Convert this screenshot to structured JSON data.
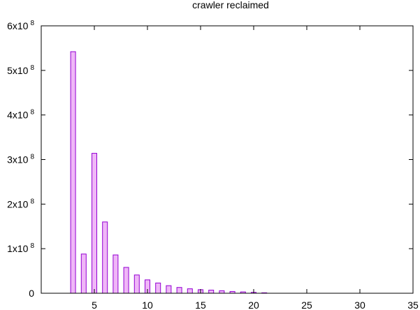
{
  "chart_data": {
    "type": "bar",
    "title": "crawler reclaimed",
    "xlabel": "",
    "ylabel": "",
    "xlim": [
      0,
      35
    ],
    "ylim": [
      0,
      600000000
    ],
    "x_ticks": [
      5,
      10,
      15,
      20,
      25,
      30,
      35
    ],
    "y_ticks": [
      {
        "value": 0,
        "mantissa": "0",
        "exp": ""
      },
      {
        "value": 100000000,
        "mantissa": "1x10",
        "exp": "8"
      },
      {
        "value": 200000000,
        "mantissa": "2x10",
        "exp": "8"
      },
      {
        "value": 300000000,
        "mantissa": "3x10",
        "exp": "8"
      },
      {
        "value": 400000000,
        "mantissa": "4x10",
        "exp": "8"
      },
      {
        "value": 500000000,
        "mantissa": "5x10",
        "exp": "8"
      },
      {
        "value": 600000000,
        "mantissa": "6x10",
        "exp": "8"
      }
    ],
    "grid": false,
    "legend": "none",
    "bar_fill": "#efb7f7",
    "bar_stroke": "#9400d3",
    "x": [
      3,
      4,
      5,
      6,
      7,
      8,
      9,
      10,
      11,
      12,
      13,
      14,
      15,
      16,
      17,
      18,
      19,
      20,
      21
    ],
    "values": [
      542000000,
      88000000,
      314000000,
      160000000,
      86000000,
      58000000,
      41000000,
      30000000,
      23000000,
      17000000,
      13000000,
      10000000,
      8000000,
      7000000,
      5500000,
      4000000,
      3000000,
      2000000,
      1000000
    ]
  }
}
